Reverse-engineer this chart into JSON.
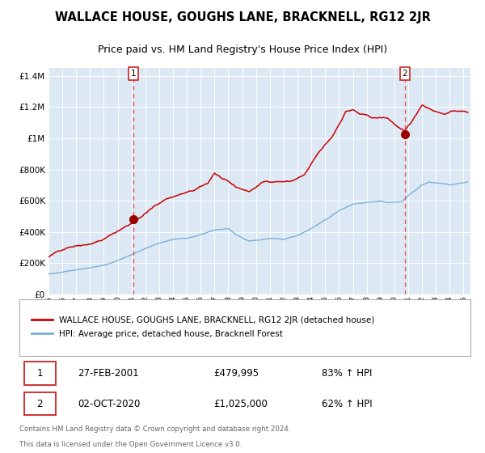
{
  "title": "WALLACE HOUSE, GOUGHS LANE, BRACKNELL, RG12 2JR",
  "subtitle": "Price paid vs. HM Land Registry's House Price Index (HPI)",
  "title_fontsize": 10.5,
  "subtitle_fontsize": 9,
  "background_color": "#dce9f5",
  "red_line_color": "#cc0000",
  "blue_line_color": "#7ab0d4",
  "dashed_line_color": "#ee4444",
  "marker_color": "#990000",
  "annotation_border_color": "#cc2222",
  "ylim": [
    0,
    1450000
  ],
  "xlim_start": 1995.0,
  "xlim_end": 2025.5,
  "yticks": [
    0,
    200000,
    400000,
    600000,
    800000,
    1000000,
    1200000,
    1400000
  ],
  "ytick_labels": [
    "£0",
    "£200K",
    "£400K",
    "£600K",
    "£800K",
    "£1M",
    "£1.2M",
    "£1.4M"
  ],
  "xtick_years": [
    1995,
    1996,
    1997,
    1998,
    1999,
    2000,
    2001,
    2002,
    2003,
    2004,
    2005,
    2006,
    2007,
    2008,
    2009,
    2010,
    2011,
    2012,
    2013,
    2014,
    2015,
    2016,
    2017,
    2018,
    2019,
    2020,
    2021,
    2022,
    2023,
    2024,
    2025
  ],
  "sale1_x": 2001.15,
  "sale1_y": 479995,
  "sale1_label": "1",
  "sale1_date": "27-FEB-2001",
  "sale1_price": "£479,995",
  "sale1_hpi": "83% ↑ HPI",
  "sale2_x": 2020.75,
  "sale2_y": 1025000,
  "sale2_label": "2",
  "sale2_date": "02-OCT-2020",
  "sale2_price": "£1,025,000",
  "sale2_hpi": "62% ↑ HPI",
  "legend_line1": "WALLACE HOUSE, GOUGHS LANE, BRACKNELL, RG12 2JR (detached house)",
  "legend_line2": "HPI: Average price, detached house, Bracknell Forest",
  "footer_line1": "Contains HM Land Registry data © Crown copyright and database right 2024.",
  "footer_line2": "This data is licensed under the Open Government Licence v3.0."
}
